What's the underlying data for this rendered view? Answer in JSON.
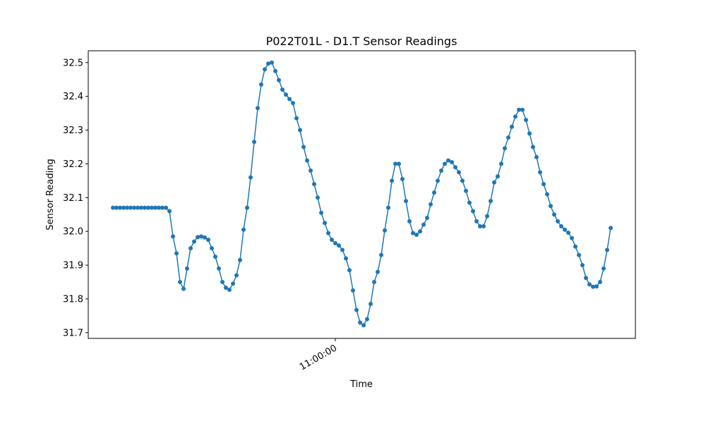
{
  "chart_data": {
    "type": "line",
    "title": "P022T01L - D1.T Sensor Readings",
    "x_label": "Time",
    "y_label": "Sensor Reading",
    "categories": [
      null,
      null,
      null,
      null,
      null,
      null,
      null,
      null,
      null,
      null,
      null,
      null,
      null,
      null,
      null,
      null,
      null,
      null,
      null,
      null,
      null,
      null,
      null,
      null,
      null,
      null,
      null,
      null,
      null,
      null,
      null,
      null,
      null,
      null,
      null,
      null,
      null,
      null,
      null,
      null,
      null,
      null,
      null,
      null,
      null,
      null,
      null,
      null,
      null,
      null,
      null,
      null,
      null,
      null,
      null,
      null,
      null,
      null,
      null,
      null,
      null,
      null,
      null,
      "11:00:00",
      null,
      null,
      null,
      null,
      null,
      null,
      null,
      null,
      null,
      null,
      null,
      null,
      null,
      null,
      null,
      null,
      null,
      null,
      null,
      null,
      null,
      null,
      null,
      null,
      null,
      null,
      null,
      null,
      null,
      null,
      null,
      null,
      null,
      null,
      null,
      null,
      null,
      null,
      null,
      null,
      null,
      null,
      null,
      null,
      null,
      null,
      null,
      null,
      null,
      null,
      null,
      null,
      null,
      null,
      null,
      null,
      null,
      null,
      null,
      null,
      null,
      null,
      null,
      null,
      null,
      null,
      null,
      null,
      null,
      null,
      null,
      null,
      null,
      null,
      null,
      null,
      null,
      null
    ],
    "series": [
      {
        "name": "D1.T",
        "color": "#1f77b4",
        "values": [
          32.07,
          32.07,
          32.07,
          32.07,
          32.07,
          32.07,
          32.07,
          32.07,
          32.07,
          32.07,
          32.07,
          32.07,
          32.07,
          32.07,
          32.07,
          32.07,
          32.06,
          31.985,
          31.935,
          31.85,
          31.83,
          31.89,
          31.95,
          31.97,
          31.983,
          31.985,
          31.982,
          31.975,
          31.95,
          31.925,
          31.89,
          31.85,
          31.833,
          31.827,
          31.845,
          31.87,
          31.915,
          32.005,
          32.07,
          32.16,
          32.265,
          32.365,
          32.435,
          32.48,
          32.497,
          32.5,
          32.475,
          32.448,
          32.42,
          32.405,
          32.392,
          32.38,
          32.335,
          32.3,
          32.25,
          32.21,
          32.18,
          32.14,
          32.1,
          32.055,
          32.025,
          31.995,
          31.975,
          31.965,
          31.958,
          31.945,
          31.92,
          31.885,
          31.825,
          31.767,
          31.73,
          31.722,
          31.74,
          31.785,
          31.85,
          31.88,
          31.93,
          32.003,
          32.07,
          32.15,
          32.2,
          32.2,
          32.155,
          32.09,
          32.03,
          31.995,
          31.99,
          32.0,
          32.02,
          32.04,
          32.08,
          32.115,
          32.15,
          32.18,
          32.2,
          32.21,
          32.205,
          32.19,
          32.175,
          32.15,
          32.12,
          32.085,
          32.06,
          32.03,
          32.015,
          32.015,
          32.045,
          32.09,
          32.145,
          32.163,
          32.2,
          32.246,
          32.278,
          32.31,
          32.34,
          32.36,
          32.36,
          32.33,
          32.29,
          32.25,
          32.22,
          32.175,
          32.14,
          32.11,
          32.075,
          32.05,
          32.03,
          32.015,
          32.005,
          31.996,
          31.98,
          31.955,
          31.93,
          31.9,
          31.862,
          31.843,
          31.836,
          31.837,
          31.85,
          31.89,
          31.945,
          32.01
        ]
      }
    ],
    "ylim": [
      31.683,
      32.535
    ],
    "yticks": [
      31.7,
      31.8,
      31.9,
      {
        "value": 32,
        "label": "32.0"
      },
      32.1,
      32.2,
      32.3,
      32.4,
      32.5
    ],
    "grid": false
  }
}
